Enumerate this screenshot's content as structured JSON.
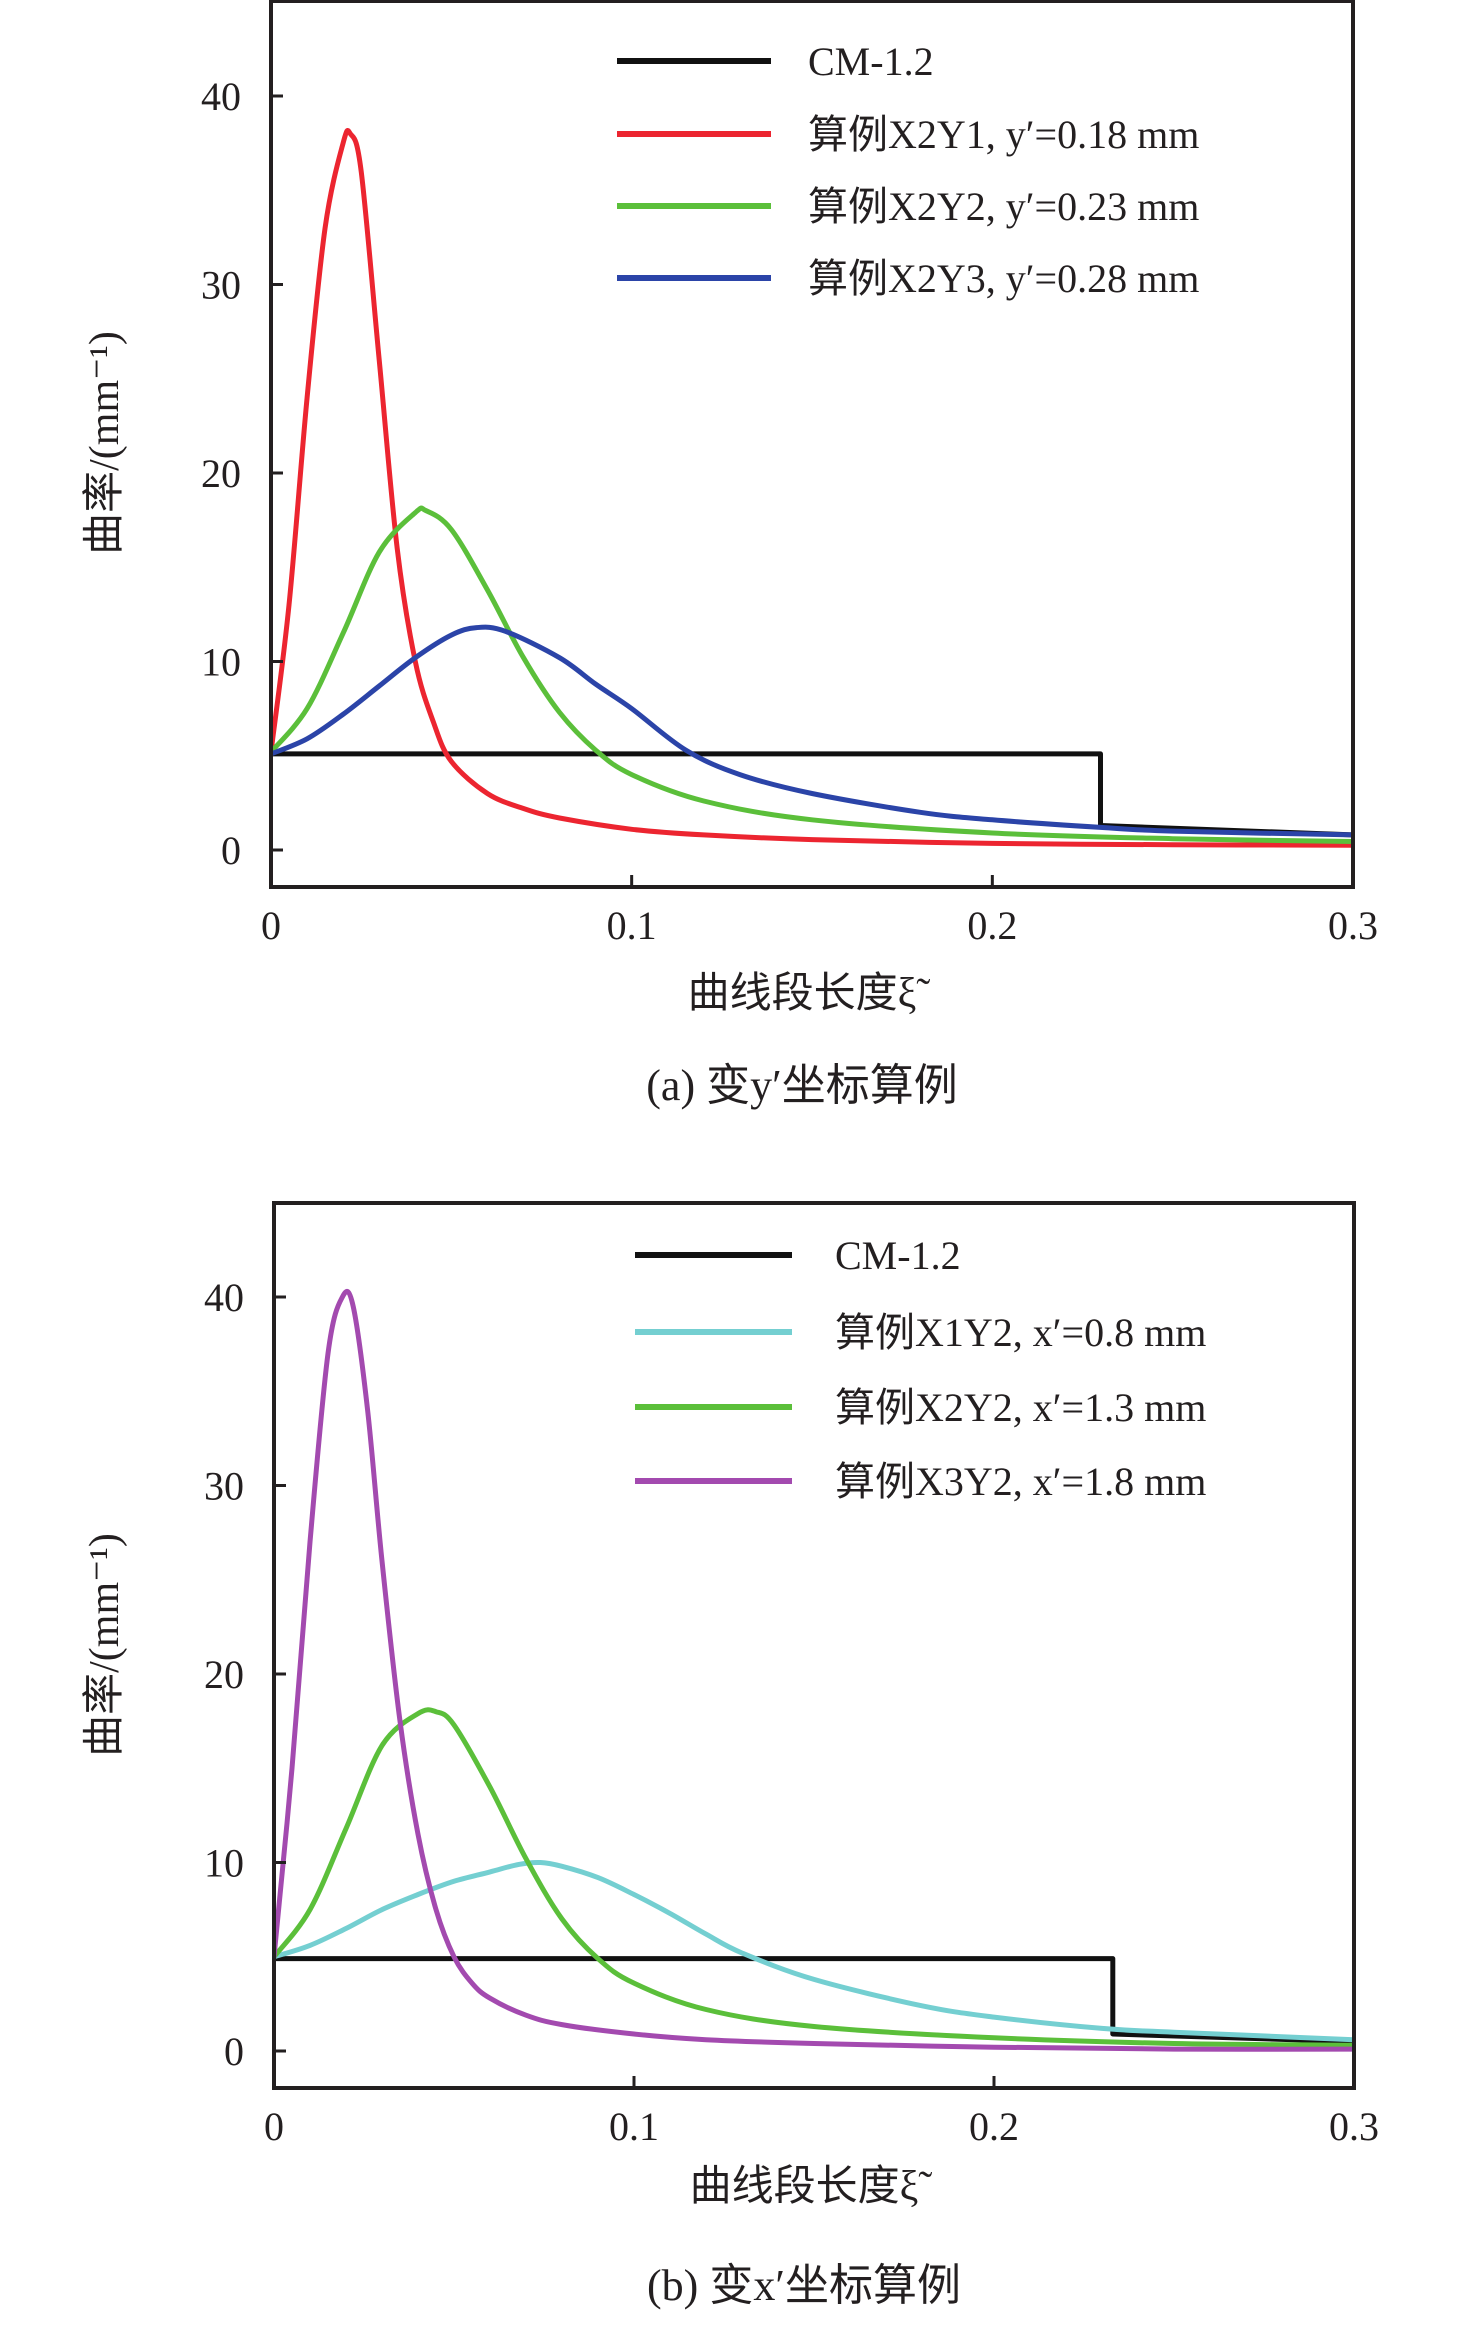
{
  "chart_data": [
    {
      "type": "line",
      "panel": "a",
      "caption": "(a) 变y′坐标算例",
      "xlabel": "曲线段长度ξ̃",
      "ylabel": "曲率/(mm⁻¹)",
      "xlim": [
        0,
        0.3
      ],
      "ylim": [
        -1.8,
        44.9
      ],
      "xticks": [
        0,
        0.1,
        0.2,
        0.3
      ],
      "xtick_labels": [
        "0",
        "0.1",
        "0.2",
        "0.3"
      ],
      "yticks": [
        0,
        10,
        20,
        30,
        40
      ],
      "ytick_labels": [
        "0",
        "10",
        "20",
        "30",
        "40"
      ],
      "grid": false,
      "legend_position": "top-right",
      "series": [
        {
          "name": "CM-1.2",
          "color": "#111111",
          "step": true,
          "x": [
            0,
            0,
            0.23,
            0.23,
            0.3
          ],
          "y": [
            5.1,
            5.1,
            5.1,
            1.3,
            0.8
          ]
        },
        {
          "name": "算例X2Y1, y′=0.18 mm",
          "color": "#ec2530",
          "x": [
            0,
            0.005,
            0.01,
            0.015,
            0.02,
            0.022,
            0.025,
            0.03,
            0.035,
            0.04,
            0.045,
            0.05,
            0.06,
            0.07,
            0.08,
            0.1,
            0.12,
            0.15,
            0.2,
            0.25,
            0.3
          ],
          "y": [
            5.2,
            13,
            24,
            33,
            37.5,
            38,
            36,
            26,
            16,
            10,
            6.8,
            4.7,
            3.0,
            2.2,
            1.7,
            1.1,
            0.8,
            0.55,
            0.35,
            0.28,
            0.25
          ]
        },
        {
          "name": "算例X2Y2, y′=0.23 mm",
          "color": "#5bbf3a",
          "x": [
            0,
            0.01,
            0.02,
            0.03,
            0.04,
            0.043,
            0.05,
            0.06,
            0.07,
            0.08,
            0.09,
            0.1,
            0.12,
            0.15,
            0.2,
            0.25,
            0.3
          ],
          "y": [
            5.2,
            7.5,
            11.5,
            15.8,
            17.9,
            18.0,
            17.0,
            13.8,
            10.2,
            7.3,
            5.3,
            4.0,
            2.6,
            1.6,
            0.9,
            0.6,
            0.45
          ]
        },
        {
          "name": "算例X2Y3, y′=0.28 mm",
          "color": "#2b44a8",
          "x": [
            0,
            0.01,
            0.02,
            0.03,
            0.04,
            0.05,
            0.057,
            0.065,
            0.08,
            0.09,
            0.1,
            0.115,
            0.13,
            0.15,
            0.18,
            0.2,
            0.23,
            0.25,
            0.3
          ],
          "y": [
            5.1,
            5.9,
            7.2,
            8.7,
            10.2,
            11.4,
            11.8,
            11.6,
            10.2,
            8.8,
            7.5,
            5.3,
            4.0,
            3.0,
            2.0,
            1.6,
            1.2,
            1.0,
            0.8
          ]
        }
      ]
    },
    {
      "type": "line",
      "panel": "b",
      "caption": "(b) 变x′坐标算例",
      "xlabel": "曲线段长度ξ̃",
      "ylabel": "曲率/(mm⁻¹)",
      "xlim": [
        0,
        0.3
      ],
      "ylim": [
        -1.9,
        45.0
      ],
      "xticks": [
        0,
        0.1,
        0.2,
        0.3
      ],
      "xtick_labels": [
        "0",
        "0.1",
        "0.2",
        "0.3"
      ],
      "yticks": [
        0,
        10,
        20,
        30,
        40
      ],
      "ytick_labels": [
        "0",
        "10",
        "20",
        "30",
        "40"
      ],
      "grid": false,
      "legend_position": "top-right",
      "series": [
        {
          "name": "CM-1.2",
          "color": "#111111",
          "step": true,
          "x": [
            0,
            0,
            0.233,
            0.233,
            0.3
          ],
          "y": [
            4.9,
            4.9,
            4.9,
            0.9,
            0.5
          ]
        },
        {
          "name": "算例X1Y2, x′=0.8 mm",
          "color": "#74cfd1",
          "x": [
            0,
            0.01,
            0.02,
            0.03,
            0.04,
            0.05,
            0.06,
            0.068,
            0.074,
            0.08,
            0.09,
            0.1,
            0.11,
            0.12,
            0.13,
            0.15,
            0.18,
            0.2,
            0.23,
            0.25,
            0.3
          ],
          "y": [
            5.0,
            5.6,
            6.5,
            7.5,
            8.3,
            9.0,
            9.5,
            9.9,
            10.0,
            9.8,
            9.2,
            8.3,
            7.3,
            6.2,
            5.2,
            3.8,
            2.4,
            1.8,
            1.2,
            1.0,
            0.6
          ]
        },
        {
          "name": "算例X2Y2, x′=1.3 mm",
          "color": "#5bbf3a",
          "x": [
            0,
            0.01,
            0.02,
            0.03,
            0.04,
            0.045,
            0.05,
            0.06,
            0.07,
            0.08,
            0.09,
            0.1,
            0.12,
            0.15,
            0.2,
            0.25,
            0.3
          ],
          "y": [
            5.0,
            7.5,
            11.8,
            16.2,
            17.9,
            18.0,
            17.3,
            14.0,
            10.2,
            7.0,
            4.9,
            3.6,
            2.2,
            1.3,
            0.7,
            0.4,
            0.3
          ]
        },
        {
          "name": "算例X3Y2, x′=1.8 mm",
          "color": "#a34aaf",
          "x": [
            0,
            0.005,
            0.01,
            0.015,
            0.019,
            0.022,
            0.026,
            0.03,
            0.035,
            0.04,
            0.045,
            0.05,
            0.055,
            0.06,
            0.07,
            0.08,
            0.1,
            0.12,
            0.15,
            0.2,
            0.25,
            0.3
          ],
          "y": [
            5.0,
            15,
            27,
            37,
            40,
            39.5,
            34,
            26,
            17.5,
            11.5,
            7.5,
            5.0,
            3.6,
            2.8,
            1.9,
            1.4,
            0.9,
            0.6,
            0.4,
            0.2,
            0.1,
            0.1
          ]
        }
      ]
    }
  ]
}
